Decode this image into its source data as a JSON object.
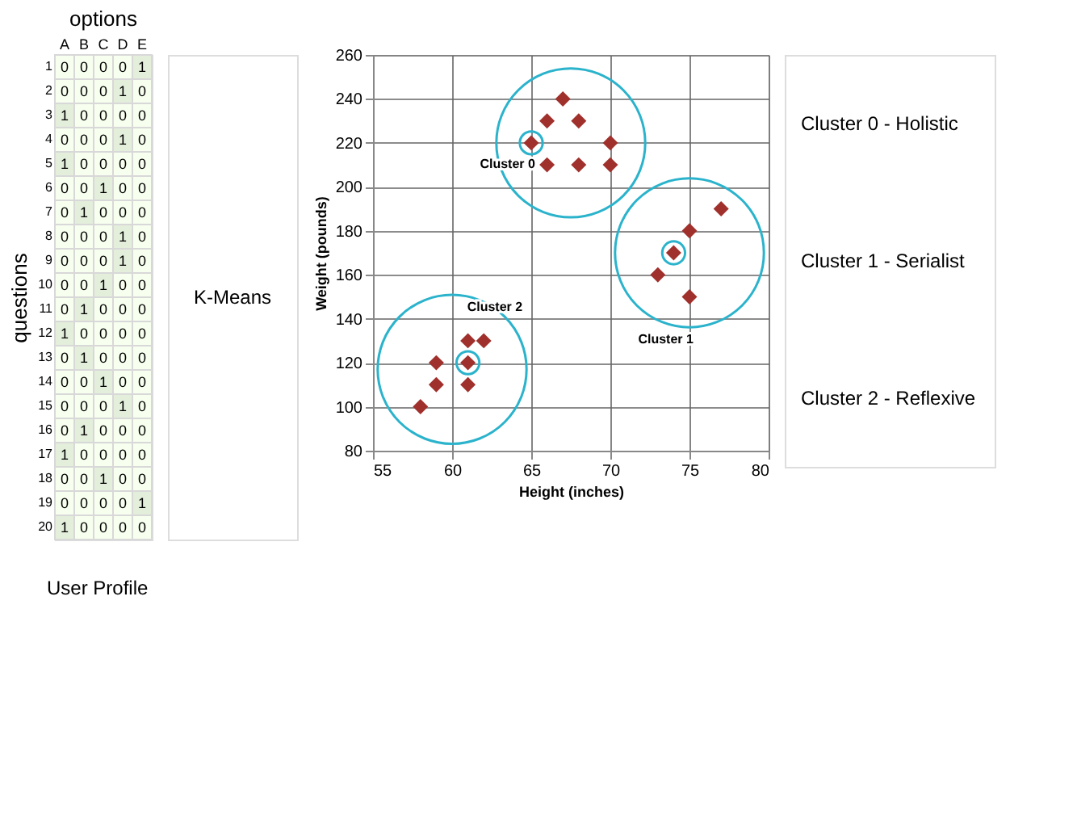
{
  "chart_data": [
    {
      "type": "heatmap",
      "title": "options",
      "ylabel": "questions",
      "annotations": [
        "User Profile",
        "K-Means"
      ],
      "categories": [
        "A",
        "B",
        "C",
        "D",
        "E"
      ],
      "y_categories": [
        "1",
        "2",
        "3",
        "4",
        "5",
        "6",
        "7",
        "8",
        "9",
        "10",
        "11",
        "12",
        "13",
        "14",
        "15",
        "16",
        "17",
        "18",
        "19",
        "20"
      ],
      "cells": [
        [
          0,
          0,
          0,
          0,
          1
        ],
        [
          0,
          0,
          0,
          1,
          0
        ],
        [
          1,
          0,
          0,
          0,
          0
        ],
        [
          0,
          0,
          0,
          1,
          0
        ],
        [
          1,
          0,
          0,
          0,
          0
        ],
        [
          0,
          0,
          1,
          0,
          0
        ],
        [
          0,
          1,
          0,
          0,
          0
        ],
        [
          0,
          0,
          0,
          1,
          0
        ],
        [
          0,
          0,
          0,
          1,
          0
        ],
        [
          0,
          0,
          1,
          0,
          0
        ],
        [
          0,
          1,
          0,
          0,
          0
        ],
        [
          1,
          0,
          0,
          0,
          0
        ],
        [
          0,
          1,
          0,
          0,
          0
        ],
        [
          0,
          0,
          1,
          0,
          0
        ],
        [
          0,
          0,
          0,
          1,
          0
        ],
        [
          0,
          1,
          0,
          0,
          0
        ],
        [
          1,
          0,
          0,
          0,
          0
        ],
        [
          0,
          0,
          1,
          0,
          0
        ],
        [
          0,
          0,
          0,
          0,
          1
        ],
        [
          1,
          0,
          0,
          0,
          0
        ]
      ],
      "data_labels": true
    },
    {
      "type": "scatter",
      "xlabel": "Height (inches)",
      "ylabel": "Weight (pounds)",
      "xlim": [
        55,
        80
      ],
      "xticks": [
        55,
        60,
        65,
        70,
        75,
        80
      ],
      "ylim": [
        80,
        260
      ],
      "yticks": [
        80,
        100,
        120,
        140,
        160,
        180,
        200,
        220,
        240,
        260
      ],
      "grid": true,
      "series": [
        {
          "type": "scatter",
          "marker": "diamond",
          "color": "#a0302c",
          "x": [
            65,
            66,
            67,
            68,
            70,
            66,
            68,
            70,
            73,
            74,
            75,
            77,
            75,
            58,
            59,
            59,
            61,
            61,
            61,
            62
          ],
          "values": [
            220,
            230,
            240,
            230,
            220,
            210,
            210,
            210,
            160,
            170,
            180,
            190,
            150,
            100,
            110,
            120,
            110,
            120,
            130,
            130
          ]
        },
        {
          "type": "scatter",
          "marker": "circle",
          "color": "#2bb3cc",
          "x": [
            65,
            74,
            61
          ],
          "values": [
            220,
            170,
            120
          ]
        },
        {
          "type": "bubble",
          "color": "#2bb3cc",
          "x": [
            67.5,
            75,
            60
          ],
          "values": [
            220,
            170,
            117
          ],
          "sizes": [
            1,
            1,
            1
          ]
        }
      ],
      "annotations": [
        {
          "text": "Cluster 0",
          "x": 63.5,
          "y": 210
        },
        "Cluster 1",
        {
          "text": "Cluster 2",
          "x": 62.7,
          "y": 145
        },
        "Cluster 0 - Holistic",
        "Cluster 1 - Serialist",
        "Cluster 2 - Reflexive"
      ]
    }
  ]
}
